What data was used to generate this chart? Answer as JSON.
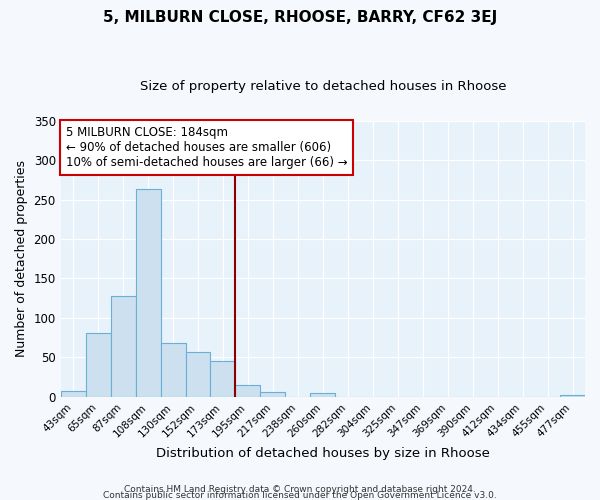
{
  "title1": "5, MILBURN CLOSE, RHOOSE, BARRY, CF62 3EJ",
  "title2": "Size of property relative to detached houses in Rhoose",
  "xlabel": "Distribution of detached houses by size in Rhoose",
  "ylabel": "Number of detached properties",
  "bin_labels": [
    "43sqm",
    "65sqm",
    "87sqm",
    "108sqm",
    "130sqm",
    "152sqm",
    "173sqm",
    "195sqm",
    "217sqm",
    "238sqm",
    "260sqm",
    "282sqm",
    "304sqm",
    "325sqm",
    "347sqm",
    "369sqm",
    "390sqm",
    "412sqm",
    "434sqm",
    "455sqm",
    "477sqm"
  ],
  "bin_values": [
    7,
    81,
    128,
    263,
    68,
    57,
    45,
    15,
    6,
    0,
    5,
    0,
    0,
    0,
    0,
    0,
    0,
    0,
    0,
    0,
    2
  ],
  "bar_color": "#cce0f0",
  "bar_edge_color": "#6aafd6",
  "vline_color": "#8b0000",
  "annotation_title": "5 MILBURN CLOSE: 184sqm",
  "annotation_line1": "← 90% of detached houses are smaller (606)",
  "annotation_line2": "10% of semi-detached houses are larger (66) →",
  "annotation_box_color": "#ffffff",
  "annotation_box_edge": "#cc0000",
  "ylim": [
    0,
    350
  ],
  "yticks": [
    0,
    50,
    100,
    150,
    200,
    250,
    300,
    350
  ],
  "footer1": "Contains HM Land Registry data © Crown copyright and database right 2024.",
  "footer2": "Contains public sector information licensed under the Open Government Licence v3.0.",
  "fig_bg_color": "#f5f9fd",
  "plot_bg_color": "#e8f2fb"
}
